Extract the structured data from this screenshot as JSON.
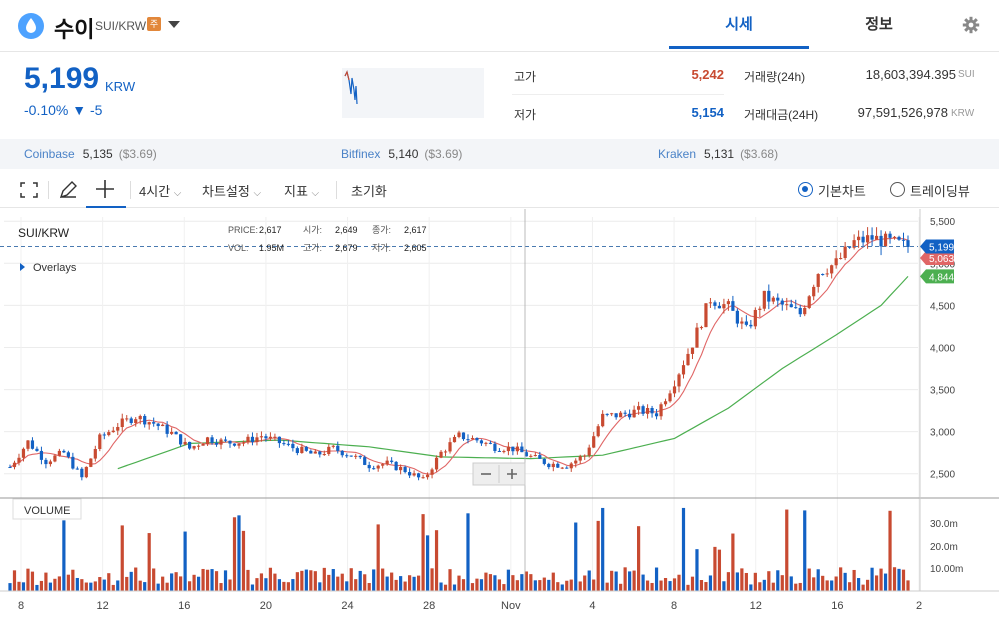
{
  "header": {
    "coin_name": "수이",
    "pair": "SUI/KRW",
    "badge": "주",
    "tabs": [
      "시세",
      "정보"
    ]
  },
  "price": {
    "value": "5,199",
    "currency": "KRW",
    "change_pct": "-0.10%",
    "change_abs": "▼ -5",
    "high_label": "고가",
    "high": "5,242",
    "low_label": "저가",
    "low": "5,154",
    "volume_label": "거래량(24h)",
    "volume": "18,603,394.395",
    "volume_unit": "SUI",
    "amount_label": "거래대금(24H)",
    "amount": "97,591,526,978",
    "amount_unit": "KRW"
  },
  "exchanges": [
    {
      "name": "Coinbase",
      "price": "5,135",
      "usd": "($3.69)"
    },
    {
      "name": "Bitfinex",
      "price": "5,140",
      "usd": "($3.69)"
    },
    {
      "name": "Kraken",
      "price": "5,131",
      "usd": "($3.68)"
    }
  ],
  "toolbar": {
    "interval": "4시간",
    "settings": "차트설정",
    "indicators": "지표",
    "reset": "초기화",
    "basic_chart": "기본차트",
    "tradingview": "트레이딩뷰"
  },
  "colors": {
    "accent": "#1261c4",
    "up": "#c84a31",
    "down": "#1261c4",
    "ma_short": "#e06666",
    "ma_long": "#4caf50"
  },
  "legend": {
    "symbol": "SUI/KRW",
    "overlays": "Overlays",
    "price_label": "PRICE:",
    "price_val": "2,617",
    "open_label": "시가:",
    "open_val": "2,649",
    "close_label": "종가:",
    "close_val": "2,617",
    "vol_label": "VOL:",
    "vol_val": "1.95M",
    "high_label": "고가:",
    "high_val": "2,679",
    "low_label": "저가:",
    "low_val": "2,605",
    "volume_title": "VOLUME"
  },
  "chart_data": {
    "type": "candlestick",
    "x_ticks": [
      "8",
      "12",
      "16",
      "20",
      "24",
      "28",
      "Nov",
      "4",
      "8",
      "12",
      "16",
      "2"
    ],
    "y_ticks": [
      "5,500",
      "5,000",
      "4,500",
      "4,000",
      "3,500",
      "3,000",
      "2,500"
    ],
    "ylim": [
      2200,
      5550
    ],
    "volume_ticks": [
      "30.0m",
      "20.0m",
      "10.00m"
    ],
    "last_price": "5,199",
    "ma_short_last": "5,063",
    "ma_long_last": "4,844",
    "close_trend": [
      [
        0,
        2580
      ],
      [
        4,
        2880
      ],
      [
        8,
        2650
      ],
      [
        12,
        2750
      ],
      [
        16,
        2450
      ],
      [
        20,
        2920
      ],
      [
        24,
        3080
      ],
      [
        28,
        3180
      ],
      [
        32,
        3100
      ],
      [
        36,
        2980
      ],
      [
        40,
        2800
      ],
      [
        44,
        2920
      ],
      [
        48,
        2870
      ],
      [
        52,
        2880
      ],
      [
        56,
        2950
      ],
      [
        60,
        2870
      ],
      [
        64,
        2790
      ],
      [
        68,
        2720
      ],
      [
        72,
        2800
      ],
      [
        76,
        2720
      ],
      [
        80,
        2600
      ],
      [
        84,
        2620
      ],
      [
        88,
        2540
      ],
      [
        92,
        2420
      ],
      [
        96,
        2750
      ],
      [
        100,
        2950
      ],
      [
        104,
        2900
      ],
      [
        108,
        2820
      ],
      [
        112,
        2800
      ],
      [
        116,
        2700
      ],
      [
        120,
        2620
      ],
      [
        124,
        2600
      ],
      [
        128,
        2720
      ],
      [
        132,
        3180
      ],
      [
        136,
        3200
      ],
      [
        140,
        3250
      ],
      [
        144,
        3220
      ],
      [
        148,
        3600
      ],
      [
        152,
        4050
      ],
      [
        156,
        4580
      ],
      [
        160,
        4480
      ],
      [
        164,
        4200
      ],
      [
        168,
        4600
      ],
      [
        172,
        4500
      ],
      [
        176,
        4400
      ],
      [
        180,
        4900
      ],
      [
        184,
        5000
      ],
      [
        188,
        5250
      ],
      [
        192,
        5300
      ],
      [
        196,
        5250
      ],
      [
        200,
        5199
      ]
    ],
    "ma_long_trend": [
      [
        24,
        2560
      ],
      [
        40,
        2860
      ],
      [
        60,
        2900
      ],
      [
        80,
        2820
      ],
      [
        96,
        2700
      ],
      [
        116,
        2680
      ],
      [
        132,
        2720
      ],
      [
        148,
        2920
      ],
      [
        160,
        3280
      ],
      [
        172,
        3750
      ],
      [
        184,
        4150
      ],
      [
        194,
        4500
      ],
      [
        200,
        4844
      ]
    ]
  }
}
